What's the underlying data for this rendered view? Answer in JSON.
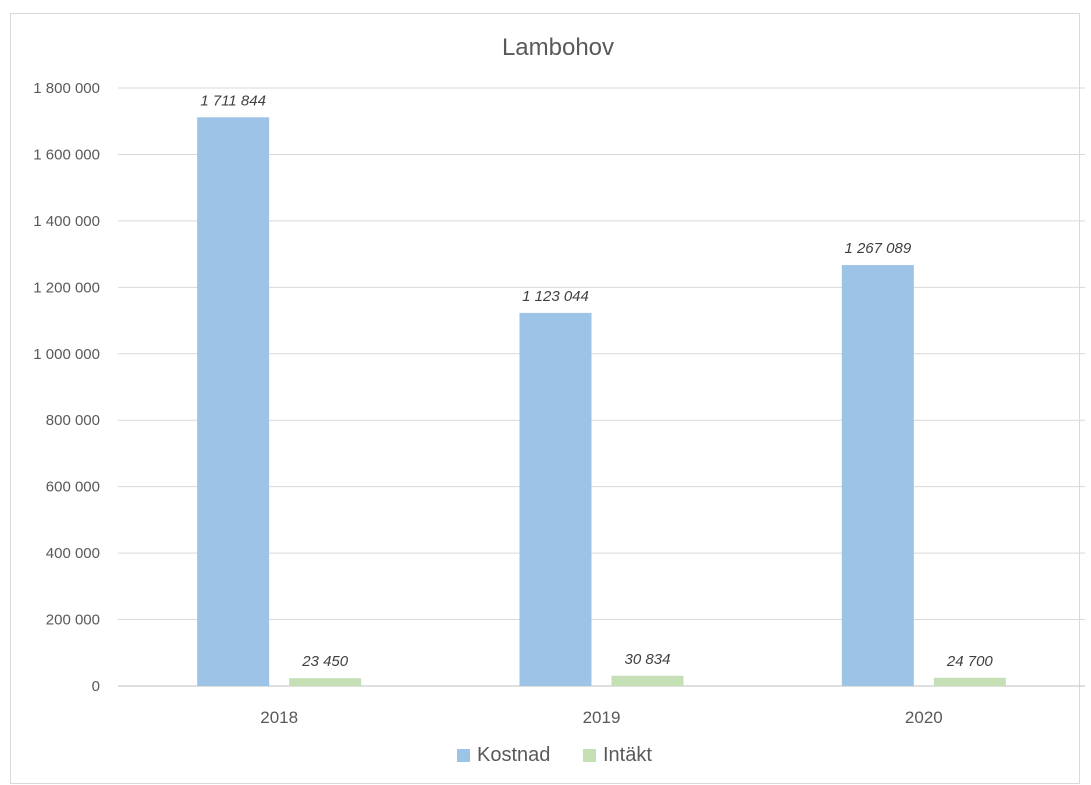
{
  "chart_data": {
    "type": "bar",
    "title": "Lambohov",
    "categories": [
      "2018",
      "2019",
      "2020"
    ],
    "series": [
      {
        "name": "Kostnad",
        "color": "#9dc3e6",
        "values": [
          1711844,
          1123044,
          1267089
        ],
        "labels": [
          "1 711 844",
          "1 123 044",
          "1 267 089"
        ]
      },
      {
        "name": "Intäkt",
        "color": "#c5e0b4",
        "values": [
          23450,
          30834,
          24700
        ],
        "labels": [
          "23 450",
          "30 834",
          "24 700"
        ]
      }
    ],
    "ylim": [
      0,
      1800000
    ],
    "yticks": [
      0,
      200000,
      400000,
      600000,
      800000,
      1000000,
      1200000,
      1400000,
      1600000,
      1800000
    ],
    "ytick_labels": [
      "0",
      "200 000",
      "400 000",
      "600 000",
      "800 000",
      "1 000 000",
      "1 200 000",
      "1 400 000",
      "1 600 000",
      "1 800 000"
    ],
    "grid": true,
    "legend": "bottom"
  }
}
